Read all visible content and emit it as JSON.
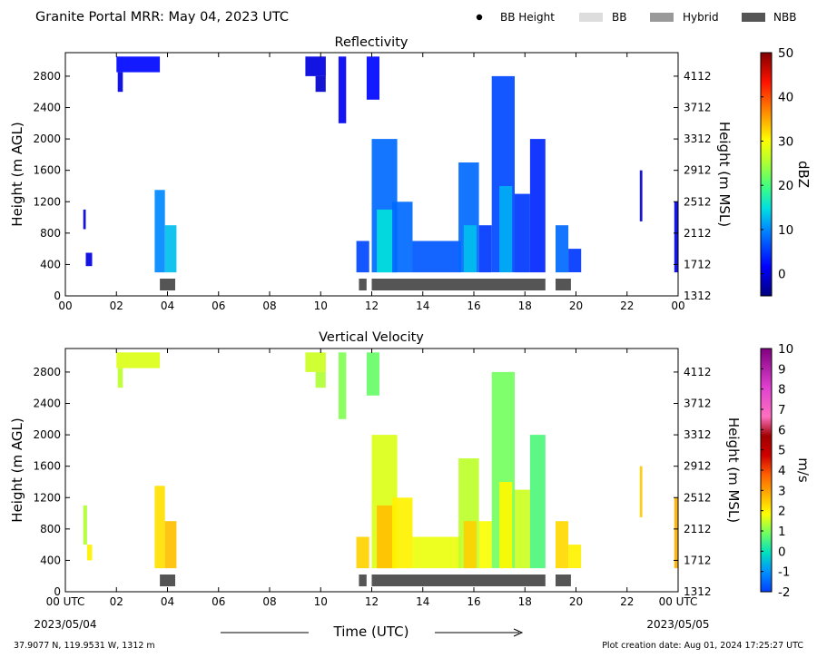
{
  "header": {
    "title": "Granite Portal MRR:  May 04, 2023 UTC",
    "legend": [
      {
        "label": "BB Height",
        "marker": "dot",
        "color": "#000000"
      },
      {
        "label": "BB",
        "marker": "box",
        "color": "#dddddd"
      },
      {
        "label": "Hybrid",
        "marker": "box",
        "color": "#999999"
      },
      {
        "label": "NBB",
        "marker": "box",
        "color": "#555555"
      }
    ]
  },
  "footer": {
    "location": "37.9077 N, 119.9531 W, 1312 m",
    "creation": "Plot creation date: Aug 01, 2024 17:25:27 UTC",
    "xlabel": "Time (UTC)",
    "date_start": "2023/05/04",
    "date_end": "2023/05/05"
  },
  "chart_data": [
    {
      "type": "heatmap",
      "title": "Reflectivity",
      "ylabel": "Height (m AGL)",
      "y2label": "Height (m MSL)",
      "xlim": [
        0,
        24
      ],
      "ylim": [
        0,
        3100
      ],
      "x_ticks": [
        "00",
        "02",
        "04",
        "06",
        "08",
        "10",
        "12",
        "14",
        "16",
        "18",
        "20",
        "22",
        "00"
      ],
      "y_ticks": [
        0,
        400,
        800,
        1200,
        1600,
        2000,
        2400,
        2800
      ],
      "y2_ticks": [
        1312,
        1712,
        2112,
        2512,
        2912,
        3312,
        3712,
        4112
      ],
      "colorbar": {
        "label": "dBZ",
        "min": -5,
        "max": 50,
        "ticks": [
          0,
          10,
          20,
          30,
          40,
          50
        ]
      },
      "bright_band_bars": [
        {
          "class": "NBB",
          "start": 3.7,
          "end": 4.3
        },
        {
          "class": "NBB",
          "start": 11.5,
          "end": 11.8
        },
        {
          "class": "NBB",
          "start": 12.0,
          "end": 18.8
        },
        {
          "class": "NBB",
          "start": 19.2,
          "end": 19.8
        }
      ],
      "echoes": [
        {
          "t0": 0.7,
          "t1": 0.8,
          "h0": 850,
          "h1": 1100,
          "v": -1
        },
        {
          "t0": 0.8,
          "t1": 1.05,
          "h0": 380,
          "h1": 550,
          "v": 0
        },
        {
          "t0": 2.0,
          "t1": 3.7,
          "h0": 2850,
          "h1": 3050,
          "v": 2
        },
        {
          "t0": 2.05,
          "t1": 2.25,
          "h0": 2600,
          "h1": 2850,
          "v": 0
        },
        {
          "t0": 3.5,
          "t1": 3.9,
          "h0": 300,
          "h1": 1350,
          "v": 10
        },
        {
          "t0": 3.9,
          "t1": 4.35,
          "h0": 300,
          "h1": 900,
          "v": 13
        },
        {
          "t0": 9.4,
          "t1": 10.2,
          "h0": 2800,
          "h1": 3050,
          "v": 0
        },
        {
          "t0": 9.8,
          "t1": 10.2,
          "h0": 2600,
          "h1": 2800,
          "v": -1
        },
        {
          "t0": 10.7,
          "t1": 11.0,
          "h0": 2200,
          "h1": 3050,
          "v": 1
        },
        {
          "t0": 11.4,
          "t1": 11.9,
          "h0": 300,
          "h1": 700,
          "v": 6
        },
        {
          "t0": 11.8,
          "t1": 12.3,
          "h0": 2500,
          "h1": 3050,
          "v": 2
        },
        {
          "t0": 12.0,
          "t1": 13.0,
          "h0": 300,
          "h1": 2000,
          "v": 8
        },
        {
          "t0": 12.2,
          "t1": 12.9,
          "h0": 300,
          "h1": 1100,
          "v": 15
        },
        {
          "t0": 12.8,
          "t1": 13.6,
          "h0": 300,
          "h1": 1200,
          "v": 8
        },
        {
          "t0": 13.6,
          "t1": 15.5,
          "h0": 300,
          "h1": 700,
          "v": 7
        },
        {
          "t0": 15.4,
          "t1": 16.2,
          "h0": 300,
          "h1": 1700,
          "v": 8
        },
        {
          "t0": 15.6,
          "t1": 16.1,
          "h0": 300,
          "h1": 900,
          "v": 13
        },
        {
          "t0": 16.2,
          "t1": 16.7,
          "h0": 300,
          "h1": 900,
          "v": 5
        },
        {
          "t0": 16.7,
          "t1": 17.6,
          "h0": 300,
          "h1": 2800,
          "v": 6
        },
        {
          "t0": 17.0,
          "t1": 17.5,
          "h0": 300,
          "h1": 1400,
          "v": 12
        },
        {
          "t0": 17.6,
          "t1": 18.2,
          "h0": 300,
          "h1": 1300,
          "v": 5
        },
        {
          "t0": 18.2,
          "t1": 18.8,
          "h0": 300,
          "h1": 2000,
          "v": 4
        },
        {
          "t0": 19.2,
          "t1": 19.7,
          "h0": 300,
          "h1": 900,
          "v": 8
        },
        {
          "t0": 19.7,
          "t1": 20.2,
          "h0": 300,
          "h1": 600,
          "v": 5
        },
        {
          "t0": 22.5,
          "t1": 22.6,
          "h0": 950,
          "h1": 1600,
          "v": -1
        },
        {
          "t0": 23.85,
          "t1": 24.0,
          "h0": 300,
          "h1": 1200,
          "v": 1
        }
      ]
    },
    {
      "type": "heatmap",
      "title": "Vertical Velocity",
      "ylabel": "Height (m AGL)",
      "y2label": "Height (m MSL)",
      "xlim": [
        0,
        24
      ],
      "ylim": [
        0,
        3100
      ],
      "x_ticks": [
        "00 UTC",
        "02",
        "04",
        "06",
        "08",
        "10",
        "12",
        "14",
        "16",
        "18",
        "20",
        "22",
        "00 UTC"
      ],
      "y_ticks": [
        0,
        400,
        800,
        1200,
        1600,
        2000,
        2400,
        2800
      ],
      "y2_ticks": [
        1312,
        1712,
        2112,
        2512,
        2912,
        3312,
        3712,
        4112
      ],
      "colorbar": {
        "label": "m/s",
        "min": -2,
        "max": 10,
        "ticks": [
          -2,
          -1,
          0,
          1,
          2,
          3,
          4,
          5,
          6,
          7,
          8,
          9,
          10
        ]
      },
      "bright_band_bars": [
        {
          "class": "NBB",
          "start": 3.7,
          "end": 4.3
        },
        {
          "class": "NBB",
          "start": 11.5,
          "end": 11.8
        },
        {
          "class": "NBB",
          "start": 12.0,
          "end": 18.8
        },
        {
          "class": "NBB",
          "start": 19.2,
          "end": 19.8
        }
      ],
      "echoes": [
        {
          "t0": 0.7,
          "t1": 0.85,
          "h0": 600,
          "h1": 1100,
          "v": 1.3
        },
        {
          "t0": 0.85,
          "t1": 1.05,
          "h0": 400,
          "h1": 600,
          "v": 2.0
        },
        {
          "t0": 2.0,
          "t1": 3.7,
          "h0": 2850,
          "h1": 3050,
          "v": 1.6
        },
        {
          "t0": 2.05,
          "t1": 2.25,
          "h0": 2600,
          "h1": 2850,
          "v": 1.4
        },
        {
          "t0": 3.5,
          "t1": 3.9,
          "h0": 300,
          "h1": 1350,
          "v": 2.2
        },
        {
          "t0": 3.9,
          "t1": 4.35,
          "h0": 300,
          "h1": 900,
          "v": 2.6
        },
        {
          "t0": 9.4,
          "t1": 10.2,
          "h0": 2800,
          "h1": 3050,
          "v": 1.5
        },
        {
          "t0": 9.8,
          "t1": 10.2,
          "h0": 2600,
          "h1": 2800,
          "v": 1.3
        },
        {
          "t0": 10.7,
          "t1": 11.0,
          "h0": 2200,
          "h1": 3050,
          "v": 1.0
        },
        {
          "t0": 11.4,
          "t1": 11.9,
          "h0": 300,
          "h1": 700,
          "v": 2.4
        },
        {
          "t0": 11.8,
          "t1": 12.3,
          "h0": 2500,
          "h1": 3050,
          "v": 0.8
        },
        {
          "t0": 12.0,
          "t1": 13.0,
          "h0": 300,
          "h1": 2000,
          "v": 1.6
        },
        {
          "t0": 12.2,
          "t1": 12.9,
          "h0": 300,
          "h1": 1100,
          "v": 2.6
        },
        {
          "t0": 12.8,
          "t1": 13.6,
          "h0": 300,
          "h1": 1200,
          "v": 2.0
        },
        {
          "t0": 13.6,
          "t1": 15.5,
          "h0": 300,
          "h1": 700,
          "v": 1.7
        },
        {
          "t0": 15.4,
          "t1": 16.2,
          "h0": 300,
          "h1": 1700,
          "v": 1.4
        },
        {
          "t0": 15.6,
          "t1": 16.1,
          "h0": 300,
          "h1": 900,
          "v": 2.4
        },
        {
          "t0": 16.2,
          "t1": 16.7,
          "h0": 300,
          "h1": 900,
          "v": 1.8
        },
        {
          "t0": 16.7,
          "t1": 17.6,
          "h0": 300,
          "h1": 2800,
          "v": 0.9
        },
        {
          "t0": 17.0,
          "t1": 17.5,
          "h0": 300,
          "h1": 1400,
          "v": 1.9
        },
        {
          "t0": 17.6,
          "t1": 18.2,
          "h0": 300,
          "h1": 1300,
          "v": 1.5
        },
        {
          "t0": 18.2,
          "t1": 18.8,
          "h0": 300,
          "h1": 2000,
          "v": 0.6
        },
        {
          "t0": 19.2,
          "t1": 19.7,
          "h0": 300,
          "h1": 900,
          "v": 2.3
        },
        {
          "t0": 19.7,
          "t1": 20.2,
          "h0": 300,
          "h1": 600,
          "v": 2.0
        },
        {
          "t0": 22.5,
          "t1": 22.6,
          "h0": 950,
          "h1": 1600,
          "v": 2.5
        },
        {
          "t0": 23.85,
          "t1": 24.0,
          "h0": 300,
          "h1": 1200,
          "v": 2.8
        }
      ]
    }
  ]
}
